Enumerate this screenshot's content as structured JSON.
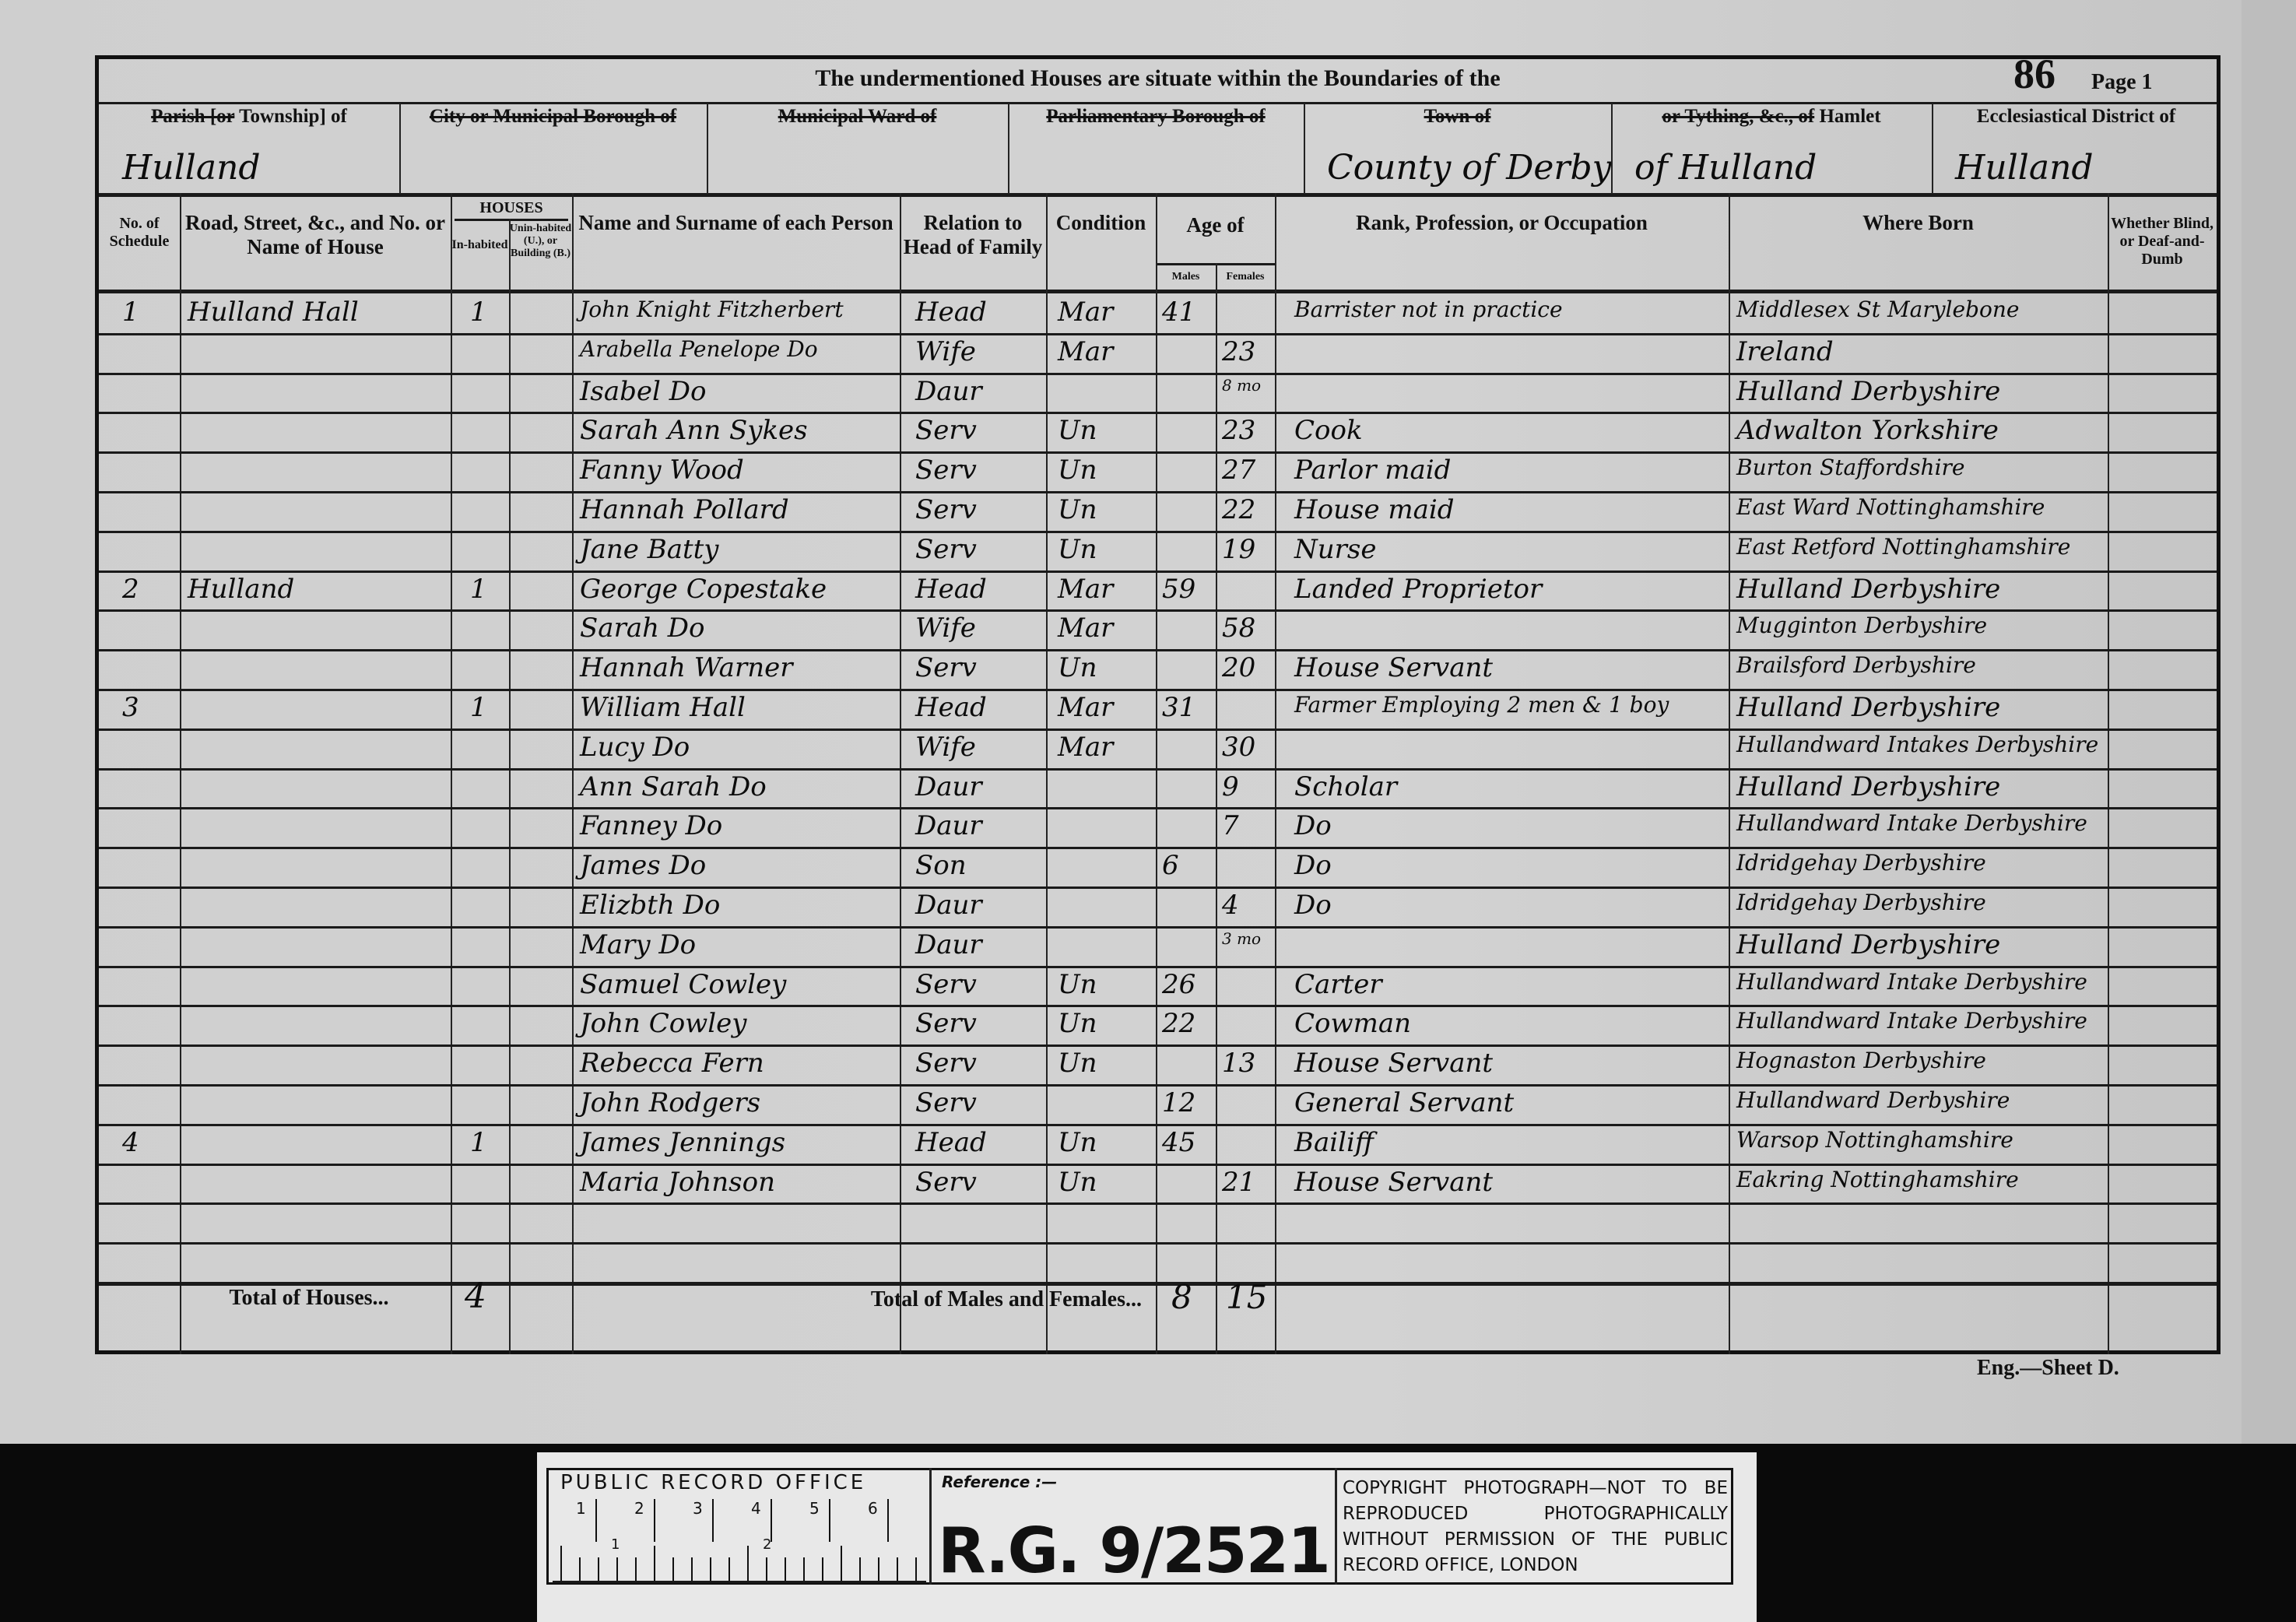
{
  "header": {
    "title": "The undermentioned Houses are situate within the Boundaries of the",
    "folio_number": "86",
    "page_label": "Page 1",
    "boxes": [
      {
        "label_struck": "Parish [or",
        "label": "Township] of",
        "value": "Hulland"
      },
      {
        "label_struck": "City or Municipal Borough of",
        "label": "",
        "value": ""
      },
      {
        "label_struck": "Municipal Ward of",
        "label": "",
        "value": ""
      },
      {
        "label_struck": "Parliamentary Borough of",
        "label": "",
        "value": ""
      },
      {
        "label_struck": "Town of",
        "label": "",
        "value": "County of Derby"
      },
      {
        "label_struck": "or Tything, &c., of",
        "label": "Hamlet",
        "value": "of Hulland"
      },
      {
        "label_struck": "",
        "label": "Ecclesiastical District of",
        "value": "Hulland"
      }
    ]
  },
  "columns": {
    "schedule": "No. of Schedule",
    "road": "Road, Street, &c., and No. or Name of House",
    "houses": "HOUSES",
    "inhabited": "In-habited",
    "uninhabited": "Unin-habited (U.), or Building (B.)",
    "name": "Name and Surname of each Person",
    "relation": "Relation to Head of Family",
    "condition": "Condition",
    "age": "Age of",
    "males": "Males",
    "females": "Females",
    "occupation": "Rank, Profession, or Occupation",
    "born": "Where Born",
    "blind": "Whether Blind, or Deaf-and-Dumb"
  },
  "rows": [
    {
      "schedule": "1",
      "road": "Hulland Hall",
      "inhabited": "1",
      "name": "John Knight Fitzherbert",
      "relation": "Head",
      "condition": "Mar",
      "male": "41",
      "female": "",
      "occupation": "Barrister not in practice",
      "born": "Middlesex St Marylebone"
    },
    {
      "schedule": "",
      "road": "",
      "inhabited": "",
      "name": "Arabella Penelope Do",
      "relation": "Wife",
      "condition": "Mar",
      "male": "",
      "female": "23",
      "occupation": "",
      "born": "Ireland"
    },
    {
      "schedule": "",
      "road": "",
      "inhabited": "",
      "name": "Isabel Do",
      "relation": "Daur",
      "condition": "",
      "male": "",
      "female": "8 mo",
      "occupation": "",
      "born": "Hulland Derbyshire"
    },
    {
      "schedule": "",
      "road": "",
      "inhabited": "",
      "name": "Sarah Ann Sykes",
      "relation": "Serv",
      "condition": "Un",
      "male": "",
      "female": "23",
      "occupation": "Cook",
      "born": "Adwalton Yorkshire"
    },
    {
      "schedule": "",
      "road": "",
      "inhabited": "",
      "name": "Fanny Wood",
      "relation": "Serv",
      "condition": "Un",
      "male": "",
      "female": "27",
      "occupation": "Parlor maid",
      "born": "Burton Staffordshire"
    },
    {
      "schedule": "",
      "road": "",
      "inhabited": "",
      "name": "Hannah Pollard",
      "relation": "Serv",
      "condition": "Un",
      "male": "",
      "female": "22",
      "occupation": "House maid",
      "born": "East Ward Nottinghamshire"
    },
    {
      "schedule": "",
      "road": "",
      "inhabited": "",
      "name": "Jane Batty",
      "relation": "Serv",
      "condition": "Un",
      "male": "",
      "female": "19",
      "occupation": "Nurse",
      "born": "East Retford Nottinghamshire"
    },
    {
      "schedule": "2",
      "road": "Hulland",
      "inhabited": "1",
      "name": "George Copestake",
      "relation": "Head",
      "condition": "Mar",
      "male": "59",
      "female": "",
      "occupation": "Landed Proprietor",
      "born": "Hulland Derbyshire"
    },
    {
      "schedule": "",
      "road": "",
      "inhabited": "",
      "name": "Sarah Do",
      "relation": "Wife",
      "condition": "Mar",
      "male": "",
      "female": "58",
      "occupation": "",
      "born": "Mugginton Derbyshire"
    },
    {
      "schedule": "",
      "road": "",
      "inhabited": "",
      "name": "Hannah Warner",
      "relation": "Serv",
      "condition": "Un",
      "male": "",
      "female": "20",
      "occupation": "House Servant",
      "born": "Brailsford Derbyshire"
    },
    {
      "schedule": "3",
      "road": "",
      "inhabited": "1",
      "name": "William Hall",
      "relation": "Head",
      "condition": "Mar",
      "male": "31",
      "female": "",
      "occupation": "Farmer Employing 2 men & 1 boy",
      "born": "Hulland Derbyshire"
    },
    {
      "schedule": "",
      "road": "",
      "inhabited": "",
      "name": "Lucy Do",
      "relation": "Wife",
      "condition": "Mar",
      "male": "",
      "female": "30",
      "occupation": "",
      "born": "Hullandward Intakes Derbyshire"
    },
    {
      "schedule": "",
      "road": "",
      "inhabited": "",
      "name": "Ann Sarah Do",
      "relation": "Daur",
      "condition": "",
      "male": "",
      "female": "9",
      "occupation": "Scholar",
      "born": "Hulland Derbyshire"
    },
    {
      "schedule": "",
      "road": "",
      "inhabited": "",
      "name": "Fanney Do",
      "relation": "Daur",
      "condition": "",
      "male": "",
      "female": "7",
      "occupation": "Do",
      "born": "Hullandward Intake Derbyshire"
    },
    {
      "schedule": "",
      "road": "",
      "inhabited": "",
      "name": "James Do",
      "relation": "Son",
      "condition": "",
      "male": "6",
      "female": "",
      "occupation": "Do",
      "born": "Idridgehay Derbyshire"
    },
    {
      "schedule": "",
      "road": "",
      "inhabited": "",
      "name": "Elizbth Do",
      "relation": "Daur",
      "condition": "",
      "male": "",
      "female": "4",
      "occupation": "Do",
      "born": "Idridgehay Derbyshire"
    },
    {
      "schedule": "",
      "road": "",
      "inhabited": "",
      "name": "Mary Do",
      "relation": "Daur",
      "condition": "",
      "male": "",
      "female": "3 mo",
      "occupation": "",
      "born": "Hulland Derbyshire"
    },
    {
      "schedule": "",
      "road": "",
      "inhabited": "",
      "name": "Samuel Cowley",
      "relation": "Serv",
      "condition": "Un",
      "male": "26",
      "female": "",
      "occupation": "Carter",
      "born": "Hullandward Intake Derbyshire"
    },
    {
      "schedule": "",
      "road": "",
      "inhabited": "",
      "name": "John Cowley",
      "relation": "Serv",
      "condition": "Un",
      "male": "22",
      "female": "",
      "occupation": "Cowman",
      "born": "Hullandward Intake Derbyshire"
    },
    {
      "schedule": "",
      "road": "",
      "inhabited": "",
      "name": "Rebecca Fern",
      "relation": "Serv",
      "condition": "Un",
      "male": "",
      "female": "13",
      "occupation": "House Servant",
      "born": "Hognaston Derbyshire"
    },
    {
      "schedule": "",
      "road": "",
      "inhabited": "",
      "name": "John Rodgers",
      "relation": "Serv",
      "condition": "",
      "male": "12",
      "female": "",
      "occupation": "General Servant",
      "born": "Hullandward Derbyshire"
    },
    {
      "schedule": "4",
      "road": "",
      "inhabited": "1",
      "name": "James Jennings",
      "relation": "Head",
      "condition": "Un",
      "male": "45",
      "female": "",
      "occupation": "Bailiff",
      "born": "Warsop Nottinghamshire"
    },
    {
      "schedule": "",
      "road": "",
      "inhabited": "",
      "name": "Maria Johnson",
      "relation": "Serv",
      "condition": "Un",
      "male": "",
      "female": "21",
      "occupation": "House Servant",
      "born": "Eakring Nottinghamshire"
    }
  ],
  "totals": {
    "houses_label": "Total of Houses...",
    "houses_value": "4",
    "persons_label": "Total of Males and Females...",
    "males": "8",
    "females": "15"
  },
  "footer_note": "Eng.—Sheet D.",
  "archive_label": {
    "office": "PUBLIC RECORD OFFICE",
    "scale_ticks": [
      "1",
      "2",
      "3",
      "4",
      "5",
      "6"
    ],
    "scale_ticks_lower": [
      "1",
      "2"
    ],
    "reference_label": "Reference :—",
    "reference_value": "R.G. 9/2521",
    "copyright": "COPYRIGHT PHOTOGRAPH—NOT TO BE REPRODUCED PHOTOGRAPHICALLY WITHOUT PERMISSION OF THE PUBLIC RECORD OFFICE, LONDON"
  }
}
